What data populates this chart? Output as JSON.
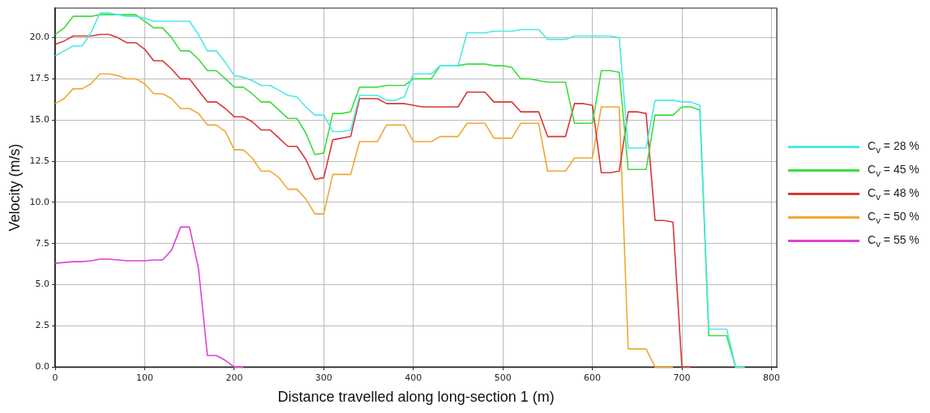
{
  "chart_data": {
    "type": "line",
    "xlabel": "Distance travelled along long-section 1 (m)",
    "ylabel": "Velocity (m/s)",
    "x": [
      0,
      10,
      20,
      30,
      40,
      50,
      60,
      70,
      80,
      90,
      100,
      110,
      120,
      130,
      140,
      150,
      160,
      170,
      180,
      190,
      200,
      210,
      220,
      230,
      240,
      250,
      260,
      270,
      280,
      290,
      300,
      310,
      320,
      330,
      340,
      350,
      360,
      370,
      380,
      390,
      400,
      410,
      420,
      430,
      440,
      450,
      460,
      470,
      480,
      490,
      500,
      510,
      520,
      530,
      540,
      550,
      560,
      570,
      580,
      590,
      600,
      610,
      620,
      630,
      640,
      650,
      660,
      670,
      680,
      690,
      700,
      710,
      720,
      730,
      740,
      750,
      760,
      770
    ],
    "series": [
      {
        "name": "C$_{v}$ = 28 %",
        "color": "#4de8e8",
        "values": [
          18.9,
          19.2,
          19.5,
          19.5,
          20.3,
          21.5,
          21.5,
          21.4,
          21.3,
          21.3,
          21.2,
          21.0,
          21.0,
          21.0,
          21.0,
          21.0,
          20.2,
          19.2,
          19.2,
          18.5,
          17.7,
          17.6,
          17.4,
          17.1,
          17.1,
          16.8,
          16.5,
          16.4,
          15.8,
          15.3,
          15.3,
          14.3,
          14.3,
          14.4,
          16.5,
          16.5,
          16.5,
          16.2,
          16.2,
          16.4,
          17.8,
          17.8,
          17.8,
          18.3,
          18.3,
          18.3,
          20.3,
          20.3,
          20.3,
          20.4,
          20.4,
          20.4,
          20.5,
          20.5,
          20.5,
          19.9,
          19.9,
          19.9,
          20.1,
          20.1,
          20.1,
          20.1,
          20.1,
          20.0,
          13.3,
          13.3,
          13.3,
          16.2,
          16.2,
          16.2,
          16.1,
          16.1,
          15.9,
          2.3,
          2.3,
          2.3,
          0,
          0
        ]
      },
      {
        "name": "C$_{v}$ = 45 %",
        "color": "#3ddc3d",
        "values": [
          20.2,
          20.6,
          21.3,
          21.3,
          21.3,
          21.4,
          21.4,
          21.4,
          21.4,
          21.4,
          21.0,
          20.6,
          20.6,
          20.0,
          19.2,
          19.2,
          18.7,
          18.0,
          18.0,
          17.5,
          17.0,
          17.0,
          16.6,
          16.1,
          16.1,
          15.6,
          15.1,
          15.1,
          14.2,
          12.9,
          13.0,
          15.4,
          15.4,
          15.5,
          17.0,
          17.0,
          17.0,
          17.1,
          17.1,
          17.1,
          17.5,
          17.5,
          17.5,
          18.3,
          18.3,
          18.3,
          18.4,
          18.4,
          18.4,
          18.3,
          18.3,
          18.2,
          17.5,
          17.5,
          17.4,
          17.3,
          17.3,
          17.3,
          14.8,
          14.8,
          14.8,
          18.0,
          18.0,
          17.9,
          12.0,
          12.0,
          12.0,
          15.3,
          15.3,
          15.3,
          15.8,
          15.8,
          15.6,
          1.9,
          1.9,
          1.9,
          0,
          0
        ]
      },
      {
        "name": "C$_{v}$ = 48 %",
        "color": "#d93636",
        "values": [
          19.6,
          19.8,
          20.1,
          20.1,
          20.1,
          20.2,
          20.2,
          20.0,
          19.7,
          19.7,
          19.3,
          18.6,
          18.6,
          18.1,
          17.5,
          17.5,
          16.8,
          16.1,
          16.1,
          15.7,
          15.2,
          15.2,
          14.9,
          14.4,
          14.4,
          13.9,
          13.4,
          13.4,
          12.6,
          11.4,
          11.5,
          13.8,
          13.9,
          14.0,
          16.3,
          16.3,
          16.3,
          16.0,
          16.0,
          16.0,
          15.9,
          15.8,
          15.8,
          15.8,
          15.8,
          15.8,
          16.7,
          16.7,
          16.7,
          16.1,
          16.1,
          16.1,
          15.5,
          15.5,
          15.5,
          14.0,
          14.0,
          14.0,
          16.0,
          16.0,
          15.9,
          11.8,
          11.8,
          11.9,
          15.5,
          15.5,
          15.4,
          8.9,
          8.9,
          8.8,
          0,
          0,
          null,
          null,
          null,
          null,
          null,
          null
        ]
      },
      {
        "name": "C$_{v}$ = 50 %",
        "color": "#f0a830",
        "values": [
          16.0,
          16.3,
          16.9,
          16.9,
          17.2,
          17.8,
          17.8,
          17.7,
          17.5,
          17.5,
          17.2,
          16.6,
          16.6,
          16.3,
          15.7,
          15.7,
          15.4,
          14.7,
          14.7,
          14.3,
          13.2,
          13.2,
          12.7,
          11.9,
          11.9,
          11.5,
          10.8,
          10.8,
          10.2,
          9.3,
          9.3,
          11.7,
          11.7,
          11.7,
          13.7,
          13.7,
          13.7,
          14.7,
          14.7,
          14.7,
          13.7,
          13.7,
          13.7,
          14.0,
          14.0,
          14.0,
          14.8,
          14.8,
          14.8,
          13.9,
          13.9,
          13.9,
          14.8,
          14.8,
          14.8,
          11.9,
          11.9,
          11.9,
          12.7,
          12.7,
          12.7,
          15.8,
          15.8,
          15.8,
          1.1,
          1.1,
          1.1,
          0,
          0,
          0,
          null,
          null,
          null,
          null,
          null,
          null,
          null,
          null
        ]
      },
      {
        "name": "C$_{v}$ = 55 %",
        "color": "#e040d8",
        "values": [
          6.3,
          6.35,
          6.4,
          6.4,
          6.45,
          6.55,
          6.55,
          6.5,
          6.45,
          6.45,
          6.45,
          6.5,
          6.5,
          7.1,
          8.5,
          8.5,
          6.0,
          0.7,
          0.7,
          0.4,
          0,
          0,
          null,
          null,
          null,
          null,
          null,
          null,
          null,
          null,
          null,
          null,
          null,
          null,
          null,
          null,
          null,
          null,
          null,
          null,
          null,
          null,
          null,
          null,
          null,
          null,
          null,
          null,
          null,
          null,
          null,
          null,
          null,
          null,
          null,
          null,
          null,
          null,
          null,
          null,
          null,
          null,
          null,
          null,
          null,
          null,
          null,
          null,
          null,
          null,
          null,
          null,
          null,
          null,
          null,
          null,
          null,
          null
        ]
      }
    ],
    "xlim": [
      0,
      806
    ],
    "xticks": [
      0,
      100,
      200,
      300,
      400,
      500,
      600,
      700,
      800
    ],
    "ylim": [
      0,
      21.8
    ],
    "yticks": [
      {
        "value": 0,
        "label": "0.0"
      },
      2.5,
      {
        "value": 5,
        "label": "5.0"
      },
      7.5,
      {
        "value": 10,
        "label": "10.0"
      },
      12.5,
      {
        "value": 15,
        "label": "15.0"
      },
      17.5,
      {
        "value": 20,
        "label": "20.0"
      }
    ],
    "grid": true,
    "legend": "right",
    "marker": "none",
    "line_style": "solid"
  }
}
